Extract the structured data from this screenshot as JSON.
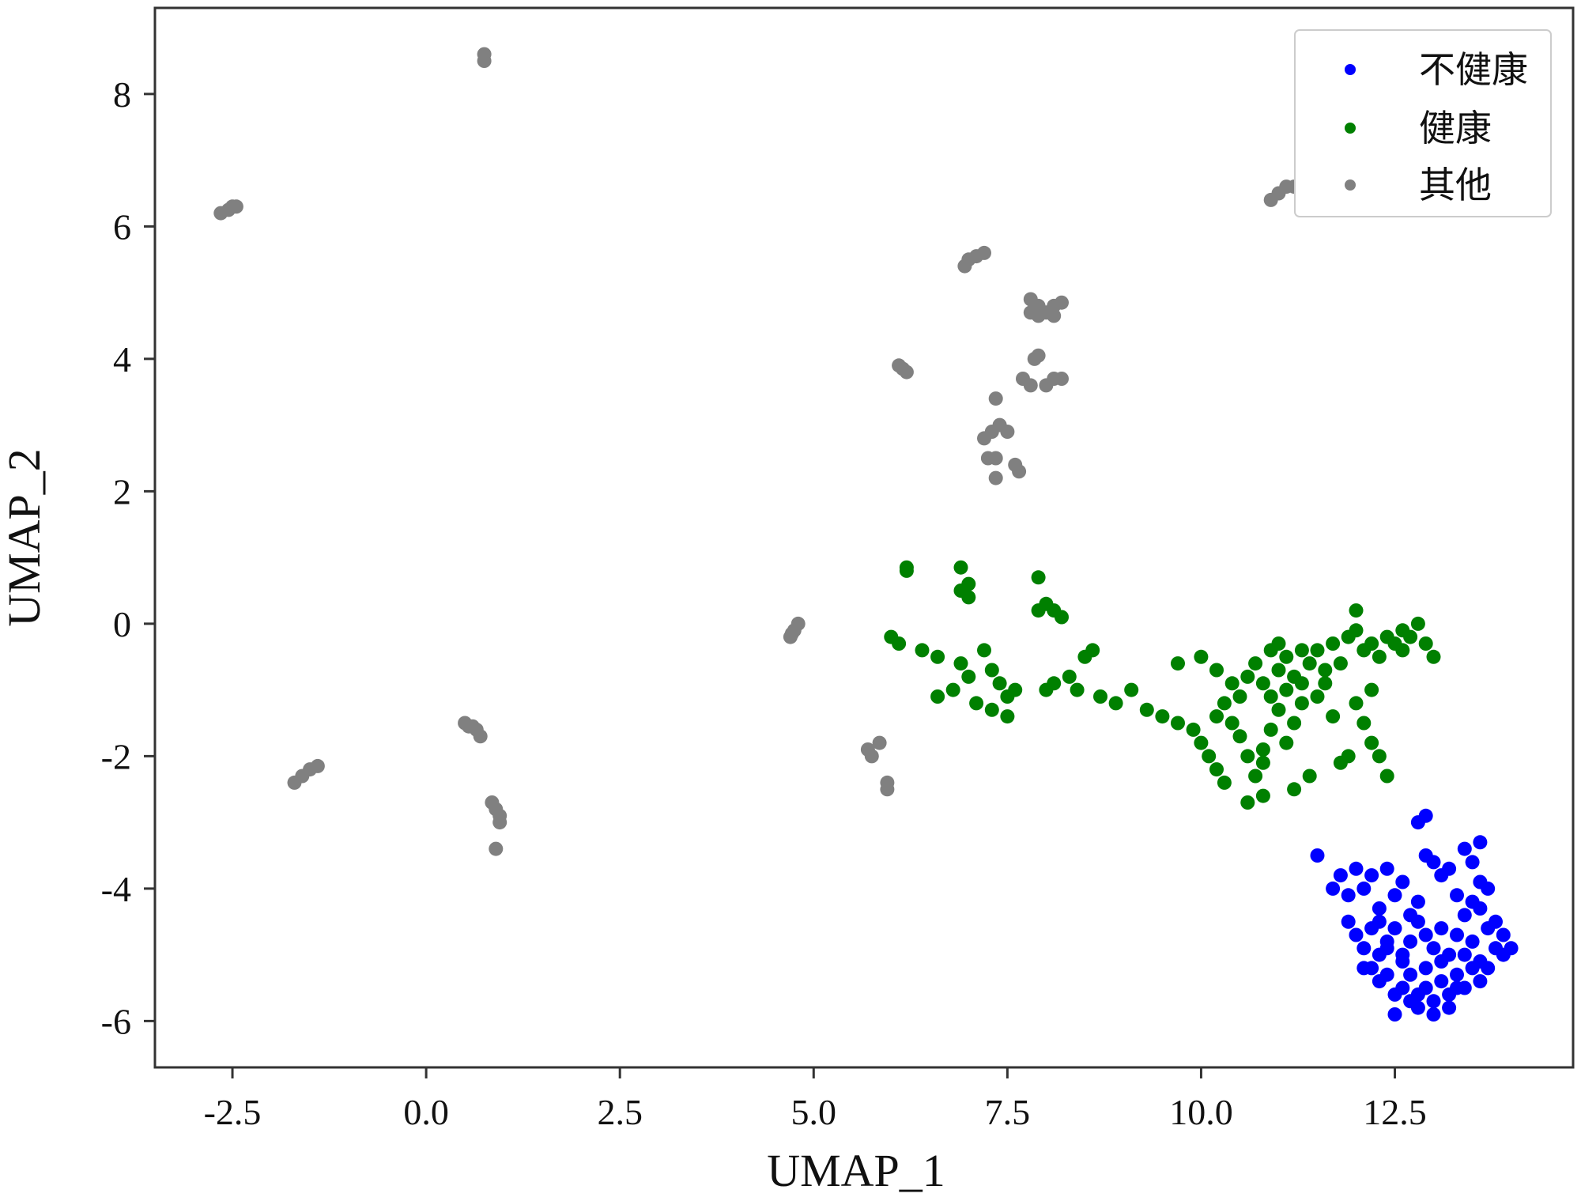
{
  "chart_data": {
    "type": "scatter",
    "xlabel": "UMAP_1",
    "ylabel": "UMAP_2",
    "xlim": [
      -3.5,
      14.8
    ],
    "ylim": [
      -6.7,
      9.3
    ],
    "xticks": [
      -2.5,
      0.0,
      2.5,
      5.0,
      7.5,
      10.0,
      12.5
    ],
    "xtick_labels": [
      "-2.5",
      "0.0",
      "2.5",
      "5.0",
      "7.5",
      "10.0",
      "12.5"
    ],
    "yticks": [
      -6,
      -4,
      -2,
      0,
      2,
      4,
      6,
      8
    ],
    "ytick_labels": [
      "-6",
      "-4",
      "-2",
      "0",
      "2",
      "4",
      "6",
      "8"
    ],
    "grid": false,
    "legend_position": "top-right",
    "series": [
      {
        "name": "不健康",
        "color": "#0000ff",
        "points": [
          [
            11.5,
            -3.5
          ],
          [
            11.7,
            -4.0
          ],
          [
            11.8,
            -3.8
          ],
          [
            11.9,
            -4.1
          ],
          [
            12.0,
            -3.7
          ],
          [
            12.1,
            -4.0
          ],
          [
            12.2,
            -3.8
          ],
          [
            12.3,
            -4.3
          ],
          [
            12.4,
            -3.7
          ],
          [
            12.5,
            -4.1
          ],
          [
            12.6,
            -3.9
          ],
          [
            12.7,
            -4.4
          ],
          [
            12.8,
            -3.0
          ],
          [
            12.9,
            -2.9
          ],
          [
            12.9,
            -3.5
          ],
          [
            13.0,
            -3.6
          ],
          [
            13.1,
            -3.8
          ],
          [
            13.2,
            -3.7
          ],
          [
            13.3,
            -4.1
          ],
          [
            13.4,
            -3.4
          ],
          [
            13.5,
            -3.6
          ],
          [
            13.6,
            -3.3
          ],
          [
            13.6,
            -3.9
          ],
          [
            13.7,
            -4.0
          ],
          [
            11.9,
            -4.5
          ],
          [
            12.0,
            -4.7
          ],
          [
            12.1,
            -4.9
          ],
          [
            12.2,
            -4.6
          ],
          [
            12.3,
            -5.0
          ],
          [
            12.4,
            -4.8
          ],
          [
            12.5,
            -4.6
          ],
          [
            12.6,
            -5.1
          ],
          [
            12.7,
            -4.8
          ],
          [
            12.8,
            -4.5
          ],
          [
            12.9,
            -4.7
          ],
          [
            13.0,
            -4.9
          ],
          [
            13.1,
            -4.6
          ],
          [
            13.2,
            -5.0
          ],
          [
            13.3,
            -4.7
          ],
          [
            13.4,
            -4.4
          ],
          [
            13.5,
            -4.8
          ],
          [
            13.6,
            -5.1
          ],
          [
            13.7,
            -4.6
          ],
          [
            13.8,
            -4.9
          ],
          [
            13.9,
            -4.7
          ],
          [
            14.0,
            -4.9
          ],
          [
            13.8,
            -4.5
          ],
          [
            13.5,
            -4.2
          ],
          [
            12.2,
            -5.2
          ],
          [
            12.3,
            -5.4
          ],
          [
            12.4,
            -5.3
          ],
          [
            12.5,
            -5.6
          ],
          [
            12.6,
            -5.5
          ],
          [
            12.7,
            -5.3
          ],
          [
            12.8,
            -5.6
          ],
          [
            12.9,
            -5.5
          ],
          [
            13.0,
            -5.7
          ],
          [
            13.1,
            -5.4
          ],
          [
            13.2,
            -5.6
          ],
          [
            13.3,
            -5.3
          ],
          [
            13.4,
            -5.5
          ],
          [
            13.5,
            -5.2
          ],
          [
            13.6,
            -5.4
          ],
          [
            13.7,
            -5.2
          ],
          [
            12.5,
            -5.9
          ],
          [
            13.0,
            -5.9
          ],
          [
            13.2,
            -5.8
          ],
          [
            12.8,
            -5.8
          ],
          [
            12.6,
            -5.0
          ],
          [
            13.1,
            -5.1
          ],
          [
            13.4,
            -5.0
          ],
          [
            12.4,
            -4.9
          ],
          [
            12.9,
            -5.2
          ],
          [
            13.3,
            -5.5
          ],
          [
            12.7,
            -5.7
          ],
          [
            12.3,
            -4.5
          ],
          [
            13.6,
            -4.3
          ],
          [
            12.1,
            -5.2
          ],
          [
            12.8,
            -4.2
          ],
          [
            13.9,
            -5.0
          ]
        ]
      },
      {
        "name": "健康",
        "color": "#008000",
        "points": [
          [
            6.2,
            0.85
          ],
          [
            6.2,
            0.8
          ],
          [
            6.9,
            0.85
          ],
          [
            7.0,
            0.6
          ],
          [
            7.0,
            0.4
          ],
          [
            6.9,
            0.5
          ],
          [
            7.9,
            0.7
          ],
          [
            7.9,
            0.2
          ],
          [
            8.0,
            0.3
          ],
          [
            8.1,
            0.2
          ],
          [
            8.2,
            0.1
          ],
          [
            6.0,
            -0.2
          ],
          [
            6.1,
            -0.3
          ],
          [
            6.4,
            -0.4
          ],
          [
            6.6,
            -0.5
          ],
          [
            6.9,
            -0.6
          ],
          [
            7.0,
            -0.8
          ],
          [
            7.2,
            -0.4
          ],
          [
            7.3,
            -0.7
          ],
          [
            7.4,
            -0.9
          ],
          [
            7.6,
            -1.0
          ],
          [
            6.6,
            -1.1
          ],
          [
            6.8,
            -1.0
          ],
          [
            7.1,
            -1.2
          ],
          [
            7.3,
            -1.3
          ],
          [
            7.5,
            -1.4
          ],
          [
            7.5,
            -1.1
          ],
          [
            8.0,
            -1.0
          ],
          [
            8.1,
            -0.9
          ],
          [
            8.3,
            -0.8
          ],
          [
            8.4,
            -1.0
          ],
          [
            8.5,
            -0.5
          ],
          [
            8.6,
            -0.4
          ],
          [
            8.7,
            -1.1
          ],
          [
            8.9,
            -1.2
          ],
          [
            9.1,
            -1.0
          ],
          [
            9.3,
            -1.3
          ],
          [
            9.5,
            -1.4
          ],
          [
            9.7,
            -1.5
          ],
          [
            9.9,
            -1.6
          ],
          [
            10.0,
            -1.8
          ],
          [
            10.1,
            -2.0
          ],
          [
            10.2,
            -2.2
          ],
          [
            9.7,
            -0.6
          ],
          [
            10.0,
            -0.5
          ],
          [
            10.2,
            -0.7
          ],
          [
            10.4,
            -0.9
          ],
          [
            10.3,
            -1.2
          ],
          [
            10.4,
            -1.5
          ],
          [
            10.5,
            -1.7
          ],
          [
            10.6,
            -2.0
          ],
          [
            10.7,
            -2.3
          ],
          [
            10.8,
            -2.1
          ],
          [
            10.6,
            -0.8
          ],
          [
            10.7,
            -0.6
          ],
          [
            10.8,
            -0.9
          ],
          [
            10.9,
            -1.1
          ],
          [
            11.0,
            -0.7
          ],
          [
            11.0,
            -1.3
          ],
          [
            11.1,
            -0.5
          ],
          [
            11.1,
            -1.0
          ],
          [
            11.2,
            -0.8
          ],
          [
            11.2,
            -1.5
          ],
          [
            11.3,
            -0.4
          ],
          [
            11.3,
            -1.2
          ],
          [
            11.4,
            -0.6
          ],
          [
            11.0,
            -0.3
          ],
          [
            10.9,
            -1.6
          ],
          [
            10.8,
            -1.9
          ],
          [
            11.5,
            -0.4
          ],
          [
            11.6,
            -0.7
          ],
          [
            11.7,
            -0.3
          ],
          [
            11.8,
            -0.6
          ],
          [
            11.9,
            -0.2
          ],
          [
            12.0,
            -0.1
          ],
          [
            12.0,
            0.2
          ],
          [
            12.1,
            -0.4
          ],
          [
            12.2,
            -0.3
          ],
          [
            12.3,
            -0.5
          ],
          [
            12.4,
            -0.2
          ],
          [
            12.5,
            -0.3
          ],
          [
            12.6,
            -0.4
          ],
          [
            12.7,
            -0.2
          ],
          [
            12.8,
            0.0
          ],
          [
            12.9,
            -0.3
          ],
          [
            13.0,
            -0.5
          ],
          [
            12.2,
            -1.0
          ],
          [
            12.0,
            -1.2
          ],
          [
            12.1,
            -1.5
          ],
          [
            12.2,
            -1.8
          ],
          [
            12.3,
            -2.0
          ],
          [
            12.4,
            -2.3
          ],
          [
            11.9,
            -2.0
          ],
          [
            11.8,
            -2.1
          ],
          [
            11.5,
            -1.1
          ],
          [
            11.7,
            -1.4
          ],
          [
            11.4,
            -2.3
          ],
          [
            11.2,
            -2.5
          ],
          [
            10.8,
            -2.6
          ],
          [
            10.6,
            -2.7
          ],
          [
            10.3,
            -2.4
          ],
          [
            11.1,
            -1.8
          ],
          [
            10.9,
            -0.4
          ],
          [
            11.3,
            -0.9
          ],
          [
            10.5,
            -1.1
          ],
          [
            10.2,
            -1.4
          ],
          [
            11.6,
            -0.9
          ],
          [
            12.6,
            -0.1
          ]
        ]
      },
      {
        "name": "其他",
        "color": "#808080",
        "points": [
          [
            0.75,
            8.6
          ],
          [
            0.75,
            8.5
          ],
          [
            -2.65,
            6.2
          ],
          [
            -2.55,
            6.25
          ],
          [
            -2.5,
            6.3
          ],
          [
            -2.45,
            6.3
          ],
          [
            11.0,
            6.5
          ],
          [
            11.1,
            6.6
          ],
          [
            11.2,
            6.6
          ],
          [
            10.9,
            6.4
          ],
          [
            7.0,
            5.5
          ],
          [
            7.1,
            5.55
          ],
          [
            7.2,
            5.6
          ],
          [
            6.95,
            5.4
          ],
          [
            7.8,
            4.9
          ],
          [
            7.9,
            4.8
          ],
          [
            7.8,
            4.7
          ],
          [
            7.9,
            4.65
          ],
          [
            8.0,
            4.7
          ],
          [
            8.1,
            4.8
          ],
          [
            8.2,
            4.85
          ],
          [
            8.1,
            4.65
          ],
          [
            6.1,
            3.9
          ],
          [
            6.15,
            3.85
          ],
          [
            6.2,
            3.8
          ],
          [
            7.85,
            4.0
          ],
          [
            7.9,
            4.05
          ],
          [
            7.7,
            3.7
          ],
          [
            7.8,
            3.6
          ],
          [
            8.0,
            3.6
          ],
          [
            8.1,
            3.7
          ],
          [
            8.2,
            3.7
          ],
          [
            7.35,
            3.4
          ],
          [
            7.3,
            2.9
          ],
          [
            7.2,
            2.8
          ],
          [
            7.4,
            3.0
          ],
          [
            7.5,
            2.9
          ],
          [
            7.25,
            2.5
          ],
          [
            7.35,
            2.5
          ],
          [
            7.6,
            2.4
          ],
          [
            7.65,
            2.3
          ],
          [
            7.35,
            2.2
          ],
          [
            4.7,
            -0.2
          ],
          [
            4.75,
            -0.1
          ],
          [
            4.8,
            0.0
          ],
          [
            4.72,
            -0.15
          ],
          [
            0.5,
            -1.5
          ],
          [
            0.6,
            -1.55
          ],
          [
            0.65,
            -1.6
          ],
          [
            0.7,
            -1.7
          ],
          [
            0.55,
            -1.55
          ],
          [
            -1.7,
            -2.4
          ],
          [
            -1.6,
            -2.3
          ],
          [
            -1.5,
            -2.2
          ],
          [
            -1.4,
            -2.15
          ],
          [
            5.7,
            -1.9
          ],
          [
            5.75,
            -2.0
          ],
          [
            5.85,
            -1.8
          ],
          [
            5.95,
            -2.4
          ],
          [
            5.95,
            -2.5
          ],
          [
            0.85,
            -2.7
          ],
          [
            0.9,
            -2.8
          ],
          [
            0.95,
            -2.9
          ],
          [
            0.95,
            -3.0
          ],
          [
            0.9,
            -3.4
          ]
        ]
      }
    ]
  }
}
